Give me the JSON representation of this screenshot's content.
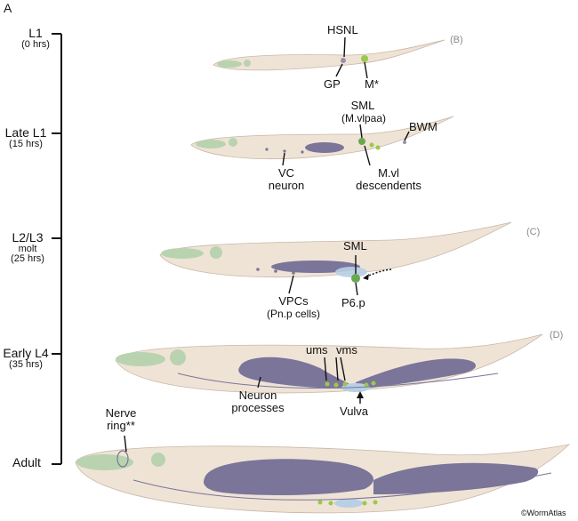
{
  "figure": {
    "panel_label": "A",
    "credit": "©WormAtlas"
  },
  "stages": [
    {
      "name": "L1",
      "time": "(0 hrs)"
    },
    {
      "name": "Late L1",
      "time": "(15 hrs)"
    },
    {
      "name": "L2/L3",
      "time_line1": "molt",
      "time": "(25 hrs)"
    },
    {
      "name": "Early L4",
      "time": "(35 hrs)"
    },
    {
      "name": "Adult"
    }
  ],
  "panel_refs": [
    "(B)",
    "(C)",
    "(D)"
  ],
  "annotations": {
    "hsnl": "HSNL",
    "gp": "GP",
    "m_star": "M*",
    "sml_line1": "SML",
    "sml_line2": "(M.vlpaa)",
    "bwm": "BWM",
    "vc_line1": "VC",
    "vc_line2": "neuron",
    "mvl_line1": "M.vl",
    "mvl_line2": "descendents",
    "sml": "SML",
    "vpcs_line1": "VPCs",
    "vpcs_line2": "(Pn.p cells)",
    "p6p": "P6.p",
    "ums": "ums",
    "vms": "vms",
    "neuron_line1": "Neuron",
    "neuron_line2": "processes",
    "vulva": "Vulva",
    "nerve_line1": "Nerve",
    "nerve_line2": "ring**"
  },
  "colors": {
    "body": "#efe3d6",
    "outline": "#c9b8a8",
    "pharynx": "#b9d3b0",
    "gonad": "#7a7599",
    "green_cell": "#9ac94a",
    "blue_cell": "#b8cfe6"
  }
}
